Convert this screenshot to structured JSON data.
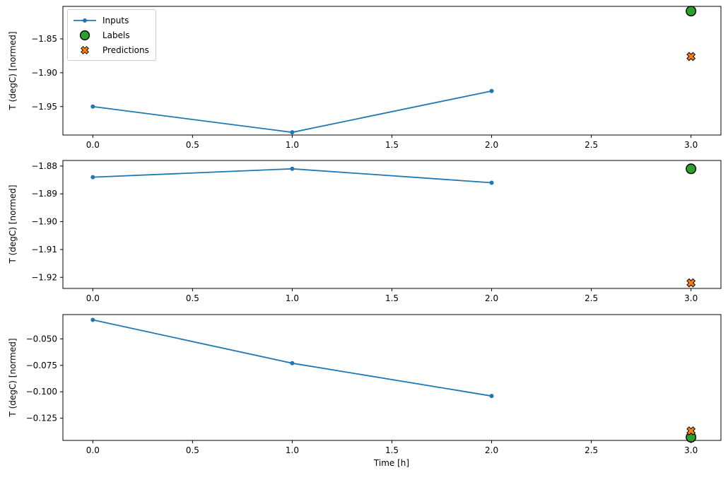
{
  "x_axis_label": "Time [h]",
  "colors": {
    "inputs": "#1f77b4",
    "labels": "#2ca02c",
    "predictions": "#ff7f0e",
    "marker_edge": "#000000",
    "axis": "#000000",
    "legend_border": "#cccccc",
    "background": "#ffffff"
  },
  "legend": {
    "items": [
      {
        "label": "Inputs",
        "marker": "line-dot-icon"
      },
      {
        "label": "Labels",
        "marker": "circle-icon"
      },
      {
        "label": "Predictions",
        "marker": "x-cross-icon"
      }
    ]
  },
  "chart_data": [
    {
      "type": "line",
      "title": "",
      "xlabel": "",
      "ylabel": "T (degC) [normed]",
      "xlim": [
        -0.15,
        3.15
      ],
      "ylim": [
        -1.992,
        -1.802
      ],
      "grid": false,
      "xticks": [
        0.0,
        0.5,
        1.0,
        1.5,
        2.0,
        2.5,
        3.0
      ],
      "xtick_labels": [
        "0.0",
        "0.5",
        "1.0",
        "1.5",
        "2.0",
        "2.5",
        "3.0"
      ],
      "yticks": [
        -1.85,
        -1.9,
        -1.95
      ],
      "ytick_labels": [
        "−1.85",
        "−1.90",
        "−1.95"
      ],
      "series": [
        {
          "name": "Inputs",
          "kind": "line",
          "marker": "dot",
          "color_key": "inputs",
          "x": [
            0,
            1,
            2
          ],
          "y": [
            -1.95,
            -1.988,
            -1.927
          ]
        },
        {
          "name": "Labels",
          "kind": "scatter",
          "marker": "circle",
          "color_key": "labels",
          "x": [
            3
          ],
          "y": [
            -1.809
          ]
        },
        {
          "name": "Predictions",
          "kind": "scatter",
          "marker": "X",
          "color_key": "predictions",
          "x": [
            3
          ],
          "y": [
            -1.876
          ]
        }
      ]
    },
    {
      "type": "line",
      "title": "",
      "xlabel": "",
      "ylabel": "T (degC) [normed]",
      "xlim": [
        -0.15,
        3.15
      ],
      "ylim": [
        -1.924,
        -1.878
      ],
      "grid": false,
      "xticks": [
        0.0,
        0.5,
        1.0,
        1.5,
        2.0,
        2.5,
        3.0
      ],
      "xtick_labels": [
        "0.0",
        "0.5",
        "1.0",
        "1.5",
        "2.0",
        "2.5",
        "3.0"
      ],
      "yticks": [
        -1.88,
        -1.89,
        -1.9,
        -1.91,
        -1.92
      ],
      "ytick_labels": [
        "−1.88",
        "−1.89",
        "−1.90",
        "−1.91",
        "−1.92"
      ],
      "series": [
        {
          "name": "Inputs",
          "kind": "line",
          "marker": "dot",
          "color_key": "inputs",
          "x": [
            0,
            1,
            2
          ],
          "y": [
            -1.884,
            -1.881,
            -1.886
          ]
        },
        {
          "name": "Labels",
          "kind": "scatter",
          "marker": "circle",
          "color_key": "labels",
          "x": [
            3
          ],
          "y": [
            -1.881
          ]
        },
        {
          "name": "Predictions",
          "kind": "scatter",
          "marker": "X",
          "color_key": "predictions",
          "x": [
            3
          ],
          "y": [
            -1.922
          ]
        }
      ]
    },
    {
      "type": "line",
      "title": "",
      "xlabel": "Time [h]",
      "ylabel": "T (degC) [normed]",
      "xlim": [
        -0.15,
        3.15
      ],
      "ylim": [
        -0.146,
        -0.027
      ],
      "grid": false,
      "xticks": [
        0.0,
        0.5,
        1.0,
        1.5,
        2.0,
        2.5,
        3.0
      ],
      "xtick_labels": [
        "0.0",
        "0.5",
        "1.0",
        "1.5",
        "2.0",
        "2.5",
        "3.0"
      ],
      "yticks": [
        -0.05,
        -0.075,
        -0.1,
        -0.125
      ],
      "ytick_labels": [
        "−0.050",
        "−0.075",
        "−0.100",
        "−0.125"
      ],
      "series": [
        {
          "name": "Inputs",
          "kind": "line",
          "marker": "dot",
          "color_key": "inputs",
          "x": [
            0,
            1,
            2
          ],
          "y": [
            -0.032,
            -0.073,
            -0.104
          ]
        },
        {
          "name": "Labels",
          "kind": "scatter",
          "marker": "circle",
          "color_key": "labels",
          "x": [
            3
          ],
          "y": [
            -0.143
          ]
        },
        {
          "name": "Predictions",
          "kind": "scatter",
          "marker": "X",
          "color_key": "predictions",
          "x": [
            3
          ],
          "y": [
            -0.137
          ]
        }
      ]
    }
  ]
}
